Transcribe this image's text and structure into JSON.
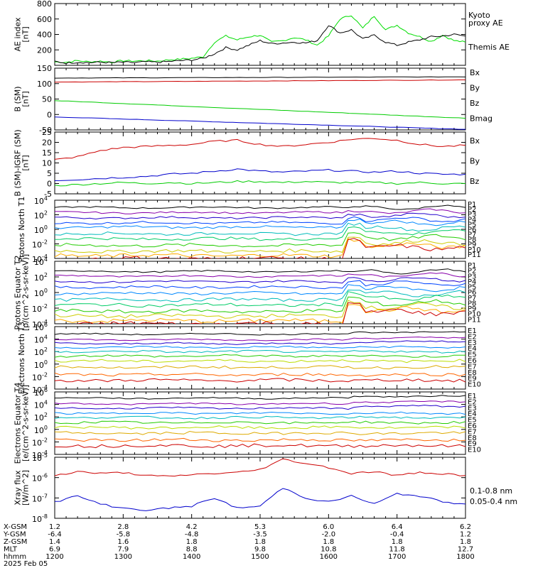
{
  "chart_data": [
    {
      "type": "line",
      "ylabel": "AE index [nT]",
      "ylim": [
        0,
        800
      ],
      "yticks": [
        "800",
        "600",
        "400",
        "200"
      ],
      "log": false,
      "x": [
        1200,
        1210,
        1220,
        1230,
        1240,
        1250,
        1300,
        1310,
        1320,
        1330,
        1340,
        1350,
        1400,
        1410,
        1420,
        1430,
        1440,
        1450,
        1500,
        1510,
        1520,
        1530,
        1540,
        1550,
        1600,
        1610,
        1620,
        1630,
        1640,
        1650,
        1700,
        1710,
        1720,
        1730,
        1740,
        1750,
        1800
      ],
      "series": [
        {
          "name": "Kyoto proxy AE",
          "color": "#00dd00",
          "values": [
            45,
            40,
            60,
            45,
            55,
            40,
            60,
            55,
            60,
            55,
            70,
            80,
            90,
            110,
            300,
            380,
            330,
            370,
            390,
            300,
            320,
            360,
            330,
            260,
            380,
            600,
            650,
            480,
            640,
            460,
            520,
            420,
            370,
            310,
            390,
            320,
            300
          ]
        },
        {
          "name": "Themis AE",
          "color": "#000000",
          "values": [
            50,
            30,
            40,
            35,
            40,
            35,
            40,
            35,
            45,
            40,
            50,
            60,
            70,
            90,
            150,
            230,
            200,
            260,
            320,
            280,
            290,
            300,
            290,
            320,
            520,
            420,
            460,
            340,
            390,
            300,
            260,
            300,
            330,
            370,
            380,
            400,
            380
          ]
        }
      ]
    },
    {
      "type": "line",
      "ylabel": "B (SM) [nT]",
      "ylim": [
        -50,
        150
      ],
      "yticks": [
        "150",
        "100",
        "50",
        "0",
        "-50"
      ],
      "log": false,
      "x": [
        1200,
        1800
      ],
      "series": [
        {
          "name": "Bx",
          "color": "#0000cc",
          "values": [
            -8,
            -48
          ]
        },
        {
          "name": "By",
          "color": "#00cc00",
          "values": [
            45,
            -12
          ]
        },
        {
          "name": "Bz",
          "color": "#cc0000",
          "values": [
            105,
            112
          ]
        },
        {
          "name": "Bmag",
          "color": "#000000",
          "values": [
            118,
            122
          ]
        }
      ]
    },
    {
      "type": "line",
      "ylabel": "B (SM)-IGRF (SM) [nT]",
      "ylim": [
        -5,
        25
      ],
      "yticks": [
        "25",
        "20",
        "15",
        "10",
        "5",
        "0",
        "-5"
      ],
      "log": false,
      "x": [
        1200,
        1220,
        1240,
        1300,
        1320,
        1340,
        1400,
        1420,
        1440,
        1500,
        1520,
        1540,
        1600,
        1620,
        1640,
        1700,
        1720,
        1740,
        1800
      ],
      "series": [
        {
          "name": "Bx",
          "color": "#0000cc",
          "values": [
            1.5,
            2,
            2.5,
            3,
            3.5,
            4.5,
            5,
            6,
            7,
            6,
            5.5,
            6,
            6.5,
            6,
            5.5,
            6,
            5,
            4.5,
            4.5
          ]
        },
        {
          "name": "By",
          "color": "#00cc00",
          "values": [
            -1,
            -0.5,
            0,
            0.5,
            0,
            0.5,
            0,
            0.5,
            1,
            1,
            0.5,
            1,
            0.5,
            0.5,
            0.5,
            0,
            0.5,
            0,
            0
          ]
        },
        {
          "name": "Bz",
          "color": "#cc0000",
          "values": [
            11.5,
            13,
            16,
            17.5,
            18,
            18.5,
            19,
            20.5,
            21,
            19,
            18,
            19,
            20,
            21.5,
            22,
            21,
            19,
            18,
            18.5
          ]
        }
      ]
    },
    {
      "type": "line",
      "ylabel": "Protons North T1",
      "log": true,
      "ylim": [
        -4,
        4
      ],
      "yticks": [
        "10^4",
        "10^2",
        "10^0",
        "10^-2",
        "10^-4"
      ],
      "x": [
        1200,
        1300,
        1400,
        1500,
        1600,
        1610,
        1620,
        1640,
        1700,
        1720,
        1740,
        1800
      ],
      "legend": [
        "P1",
        "P2",
        "P3",
        "P4",
        "P5",
        "P6",
        "P7",
        "P8",
        "P9",
        "P10",
        "P11"
      ],
      "colors": [
        "#000000",
        "#8800aa",
        "#2200cc",
        "#0044ff",
        "#0088ff",
        "#00bbbb",
        "#00cc66",
        "#22cc00",
        "#cccc00",
        "#ffaa00",
        "#cc0000"
      ],
      "series_levels": [
        3.0,
        2.3,
        1.6,
        0.9,
        0.3,
        -0.6,
        -1.3,
        -2.2,
        -3.0,
        -3.6,
        -4.0
      ]
    },
    {
      "type": "line",
      "ylabel": "Protons Equator T2 [p/(cm^2-s-sr-keV)]",
      "log": true,
      "ylim": [
        -4,
        4
      ],
      "yticks": [
        "10^4",
        "10^2",
        "10^0",
        "10^-2",
        "10^-4"
      ],
      "x": [
        1200,
        1300,
        1400,
        1500,
        1600,
        1610,
        1620,
        1640,
        1700,
        1720,
        1740,
        1800
      ],
      "legend": [
        "P1",
        "P2",
        "P3",
        "P4",
        "P5",
        "P6",
        "P7",
        "P8",
        "P9",
        "P10",
        "P11"
      ],
      "colors": [
        "#000000",
        "#8800aa",
        "#2200cc",
        "#0044ff",
        "#0088ff",
        "#00bbbb",
        "#00cc66",
        "#22cc00",
        "#cccc00",
        "#ffaa00",
        "#cc0000"
      ],
      "series_levels": [
        2.7,
        2.1,
        1.4,
        0.7,
        -0.1,
        -0.9,
        -1.6,
        -2.4,
        -3.0,
        -3.6,
        -4.0
      ]
    },
    {
      "type": "line",
      "ylabel": "Electrons North T3",
      "log": true,
      "ylim": [
        -4,
        6
      ],
      "yticks": [
        "10^6",
        "10^4",
        "10^2",
        "10^0",
        "10^-2",
        "10^-4"
      ],
      "x": [
        1200,
        1300,
        1400,
        1500,
        1600,
        1700,
        1800
      ],
      "legend": [
        "E1",
        "E2",
        "E3",
        "E4",
        "E5",
        "E6",
        "E7",
        "E8",
        "E9",
        "E10"
      ],
      "colors": [
        "#000000",
        "#8800aa",
        "#2200cc",
        "#0088ff",
        "#00bbbb",
        "#22cc00",
        "#bbdd00",
        "#ddaa00",
        "#ff6600",
        "#cc0000"
      ],
      "series_levels": [
        4.8,
        3.9,
        3.3,
        2.7,
        2.0,
        1.3,
        0.5,
        -0.5,
        -1.7,
        -2.6
      ]
    },
    {
      "type": "line",
      "ylabel": "Electrons Equator T4 [e/(cm^2-s-sr-keV)]",
      "log": true,
      "ylim": [
        -4,
        6
      ],
      "yticks": [
        "10^6",
        "10^4",
        "10^2",
        "10^0",
        "10^-2",
        "10^-4"
      ],
      "x": [
        1200,
        1300,
        1400,
        1500,
        1600,
        1700,
        1800
      ],
      "legend": [
        "E1",
        "E2",
        "E3",
        "E4",
        "E5",
        "E6",
        "E7",
        "E8",
        "E9",
        "E10"
      ],
      "colors": [
        "#000000",
        "#8800aa",
        "#2200cc",
        "#0088ff",
        "#00bbbb",
        "#22cc00",
        "#bbdd00",
        "#ddaa00",
        "#ff6600",
        "#cc0000"
      ],
      "series_levels": [
        5.0,
        4.1,
        3.4,
        2.6,
        1.9,
        1.1,
        0.3,
        -0.6,
        -1.7,
        -2.6
      ]
    },
    {
      "type": "line",
      "ylabel": "Xray flux [W/m^2]",
      "log": true,
      "ylim": [
        -8,
        -5
      ],
      "yticks": [
        "10^-5",
        "10^-6",
        "10^-7",
        "10^-8"
      ],
      "x": [
        1200,
        1220,
        1240,
        1300,
        1320,
        1340,
        1400,
        1420,
        1440,
        1500,
        1520,
        1540,
        1600,
        1620,
        1640,
        1700,
        1720,
        1740,
        1800
      ],
      "series": [
        {
          "name": "0.1-0.8 nm",
          "color": "#cc0000",
          "values": [
            -5.9,
            -5.7,
            -5.8,
            -5.75,
            -5.9,
            -5.95,
            -5.85,
            -5.8,
            -5.75,
            -5.6,
            -5.1,
            -5.3,
            -5.5,
            -5.8,
            -5.7,
            -5.9,
            -5.75,
            -5.8,
            -5.9
          ]
        },
        {
          "name": "0.05-0.4 nm",
          "color": "#0000cc",
          "values": [
            -7.2,
            -6.9,
            -7.3,
            -7.5,
            -7.6,
            -7.5,
            -7.4,
            -7.0,
            -7.5,
            -7.4,
            -6.5,
            -7.0,
            -7.2,
            -6.9,
            -7.3,
            -6.8,
            -6.9,
            -7.2,
            -7.3
          ]
        }
      ]
    }
  ],
  "panels_legend": [
    [
      "Kyoto",
      "proxy AE",
      "Themis AE"
    ],
    [
      "Bx",
      "By",
      "Bz",
      "Bmag"
    ],
    [
      "Bx",
      "By",
      "Bz"
    ]
  ],
  "xray_labels": [
    "0.1-0.8 nm",
    "0.05-0.4 nm"
  ],
  "ephemeris": {
    "labels": [
      "X-GSM",
      "Y-GSM",
      "Z-GSM",
      "MLT",
      "hhmm"
    ],
    "date": "2025 Feb 05",
    "rows": [
      [
        "1.2",
        "2.8",
        "4.2",
        "5.3",
        "6.0",
        "6.4",
        "6.2"
      ],
      [
        "-6.4",
        "-5.8",
        "-4.8",
        "-3.5",
        "-2.0",
        "-0.4",
        "1.2"
      ],
      [
        "1.4",
        "1.6",
        "1.8",
        "1.8",
        "1.8",
        "1.8",
        "1.8"
      ],
      [
        "6.9",
        "7.9",
        "8.8",
        "9.8",
        "10.8",
        "11.8",
        "12.7"
      ],
      [
        "1200",
        "1300",
        "1400",
        "1500",
        "1600",
        "1700",
        "1800"
      ]
    ]
  }
}
